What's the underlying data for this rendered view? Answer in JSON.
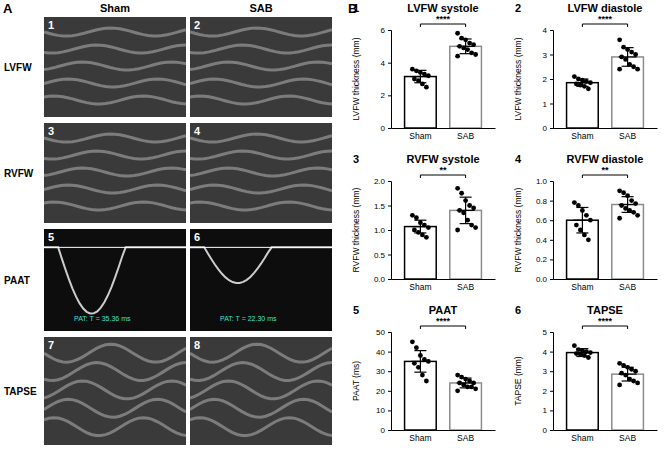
{
  "panel_labels": [
    "A",
    "B"
  ],
  "panel_a": {
    "columns": [
      "Sham",
      "SAB"
    ],
    "rows": [
      "LVFW",
      "RVFW",
      "PAAT",
      "TAPSE"
    ],
    "image_numbers": [
      "1",
      "2",
      "3",
      "4",
      "5",
      "6",
      "7",
      "8"
    ],
    "echo_annotations": [
      {
        "image": 5,
        "text": "PAT: T = 35.36 ms"
      },
      {
        "image": 6,
        "text": "PAT: T = 22.30 ms"
      }
    ]
  },
  "chart_data": [
    {
      "type": "bar",
      "panel": "1",
      "title": "LVFW systole",
      "y_label": "LVFW thickness (mm)",
      "categories": [
        "Sham",
        "SAB"
      ],
      "values": [
        3.15,
        5.0
      ],
      "errors": [
        0.38,
        0.45
      ],
      "points": [
        [
          3.6,
          3.5,
          3.4,
          3.3,
          3.2,
          3.0,
          2.9,
          2.7,
          2.5
        ],
        [
          5.8,
          5.5,
          5.4,
          5.2,
          5.1,
          5.0,
          4.9,
          4.8,
          4.6,
          4.5,
          4.4
        ]
      ],
      "colors": [
        "#000000",
        "#8c8c8c"
      ],
      "ylim": [
        0,
        6
      ],
      "yticks": [
        0,
        2,
        4,
        6
      ],
      "annotation": "****"
    },
    {
      "type": "bar",
      "panel": "2",
      "title": "LVFW diastole",
      "y_label": "LVFW thickness (mm)",
      "categories": [
        "Sham",
        "SAB"
      ],
      "values": [
        1.85,
        2.9
      ],
      "errors": [
        0.15,
        0.38
      ],
      "points": [
        [
          2.1,
          2.0,
          1.95,
          1.9,
          1.85,
          1.8,
          1.75,
          1.7,
          1.6
        ],
        [
          3.6,
          3.3,
          3.2,
          3.1,
          3.0,
          2.9,
          2.8,
          2.6,
          2.5,
          2.4,
          2.4
        ]
      ],
      "colors": [
        "#000000",
        "#8c8c8c"
      ],
      "ylim": [
        0,
        4
      ],
      "yticks": [
        0,
        1,
        2,
        3,
        4
      ],
      "annotation": "****"
    },
    {
      "type": "bar",
      "panel": "3",
      "title": "RVFW systole",
      "y_label": "RVFW thickness (mm)",
      "categories": [
        "Sham",
        "SAB"
      ],
      "values": [
        1.07,
        1.4
      ],
      "errors": [
        0.13,
        0.27
      ],
      "points": [
        [
          1.3,
          1.25,
          1.15,
          1.1,
          1.05,
          1.0,
          0.95,
          0.9,
          0.85
        ],
        [
          1.85,
          1.75,
          1.6,
          1.5,
          1.45,
          1.4,
          1.35,
          1.2,
          1.1,
          1.05,
          1.0
        ]
      ],
      "colors": [
        "#000000",
        "#8c8c8c"
      ],
      "ylim": [
        0,
        2
      ],
      "yticks": [
        {
          "value": 0,
          "label": "0.0"
        },
        0.5,
        {
          "value": 1,
          "label": "1.0"
        },
        1.5,
        {
          "value": 2,
          "label": "2.0"
        }
      ],
      "annotation": "**"
    },
    {
      "type": "bar",
      "panel": "4",
      "title": "RVFW diastole",
      "y_label": "RVFW thickness (mm)",
      "categories": [
        "Sham",
        "SAB"
      ],
      "values": [
        0.6,
        0.76
      ],
      "errors": [
        0.13,
        0.08
      ],
      "points": [
        [
          0.78,
          0.75,
          0.7,
          0.65,
          0.6,
          0.55,
          0.5,
          0.45,
          0.4
        ],
        [
          0.9,
          0.88,
          0.85,
          0.8,
          0.77,
          0.75,
          0.72,
          0.7,
          0.68,
          0.65,
          0.62
        ]
      ],
      "colors": [
        "#000000",
        "#8c8c8c"
      ],
      "ylim": [
        0,
        1
      ],
      "yticks": [
        {
          "value": 0,
          "label": "0.0"
        },
        0.2,
        0.4,
        0.6,
        0.8,
        {
          "value": 1,
          "label": "1.0"
        }
      ],
      "annotation": "**"
    },
    {
      "type": "bar",
      "panel": "5",
      "title": "PAAT",
      "y_label": "PAAT (ms)",
      "categories": [
        "Sham",
        "SAB"
      ],
      "values": [
        35,
        24
      ],
      "errors": [
        5.5,
        2.5
      ],
      "points": [
        [
          45,
          42,
          38,
          36,
          35,
          34,
          32,
          28,
          25
        ],
        [
          28,
          27,
          26,
          25,
          24,
          24,
          23,
          22,
          22,
          21,
          20
        ]
      ],
      "colors": [
        "#000000",
        "#8c8c8c"
      ],
      "ylim": [
        0,
        50
      ],
      "yticks": [
        0,
        10,
        20,
        30,
        40,
        50
      ],
      "annotation": "****"
    },
    {
      "type": "bar",
      "panel": "6",
      "title": "TAPSE",
      "y_label": "TAPSE (mm)",
      "categories": [
        "Sham",
        "SAB"
      ],
      "values": [
        3.95,
        2.85
      ],
      "errors": [
        0.2,
        0.35
      ],
      "points": [
        [
          4.3,
          4.1,
          4.05,
          4.0,
          3.95,
          3.9,
          3.85,
          3.8,
          3.7
        ],
        [
          3.4,
          3.3,
          3.2,
          3.1,
          3.0,
          2.9,
          2.8,
          2.6,
          2.5,
          2.4,
          2.3
        ]
      ],
      "colors": [
        "#000000",
        "#8c8c8c"
      ],
      "ylim": [
        0,
        5
      ],
      "yticks": [
        0,
        1,
        2,
        3,
        4,
        5
      ],
      "annotation": "****"
    }
  ]
}
